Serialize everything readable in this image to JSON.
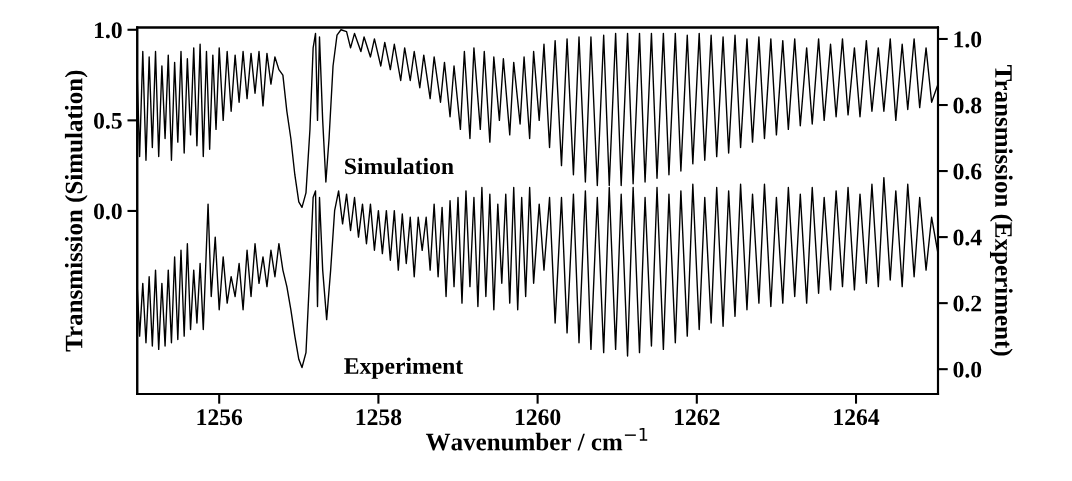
{
  "chart_data": {
    "type": "line",
    "xlabel": "Wavenumber / cm$^{−1}$",
    "ylabel": "Transmission (Simulation)",
    "y2label": "Transmission (Experiment)",
    "xlim": [
      1254.97,
      1265.03
    ],
    "xticks": [
      1256,
      1258,
      1260,
      1262,
      1264
    ],
    "ylim": [
      -1.01,
      1.013
    ],
    "yticks": [
      {
        "value": 0,
        "label": "0.0"
      },
      {
        "value": 0.5,
        "label": "0.5"
      },
      {
        "value": 1,
        "label": "1.0"
      }
    ],
    "y2lim": [
      -0.075,
      1.035
    ],
    "y2ticks": [
      {
        "value": 0,
        "label": "0.0"
      },
      {
        "value": 0.2,
        "label": "0.2"
      },
      {
        "value": 0.4,
        "label": "0.4"
      },
      {
        "value": 0.6,
        "label": "0.6"
      },
      {
        "value": 0.8,
        "label": "0.8"
      },
      {
        "value": 1,
        "label": "1.0"
      }
    ],
    "grid": false,
    "legend": false,
    "marker": "none",
    "line_style": "solid",
    "series": [
      {
        "name": "Simulation",
        "color": "#000000",
        "x": [
          1254.97,
          1255.0,
          1255.04,
          1255.08,
          1255.12,
          1255.16,
          1255.2,
          1255.24,
          1255.28,
          1255.32,
          1255.36,
          1255.4,
          1255.44,
          1255.48,
          1255.52,
          1255.56,
          1255.6,
          1255.64,
          1255.68,
          1255.72,
          1255.76,
          1255.8,
          1255.84,
          1255.88,
          1255.92,
          1255.96,
          1256.0,
          1256.05,
          1256.1,
          1256.15,
          1256.2,
          1256.25,
          1256.3,
          1256.35,
          1256.4,
          1256.45,
          1256.5,
          1256.55,
          1256.6,
          1256.65,
          1256.7,
          1256.75,
          1256.8,
          1256.85,
          1256.9,
          1256.95,
          1257.0,
          1257.04,
          1257.09,
          1257.14,
          1257.18,
          1257.21,
          1257.235,
          1257.26,
          1257.3,
          1257.34,
          1257.38,
          1257.43,
          1257.48,
          1257.53,
          1257.6,
          1257.65,
          1257.7,
          1257.78,
          1257.82,
          1257.9,
          1257.95,
          1258.03,
          1258.08,
          1258.15,
          1258.2,
          1258.28,
          1258.33,
          1258.4,
          1258.45,
          1258.52,
          1258.57,
          1258.65,
          1258.7,
          1258.78,
          1258.83,
          1258.9,
          1258.95,
          1259.03,
          1259.08,
          1259.15,
          1259.2,
          1259.28,
          1259.33,
          1259.4,
          1259.45,
          1259.52,
          1259.57,
          1259.65,
          1259.7,
          1259.78,
          1259.83,
          1259.9,
          1259.95,
          1260.02,
          1260.08,
          1260.15,
          1260.22,
          1260.3,
          1260.37,
          1260.45,
          1260.52,
          1260.6,
          1260.67,
          1260.75,
          1260.83,
          1260.9,
          1260.98,
          1261.05,
          1261.13,
          1261.2,
          1261.28,
          1261.35,
          1261.43,
          1261.5,
          1261.58,
          1261.65,
          1261.73,
          1261.8,
          1261.88,
          1261.95,
          1262.03,
          1262.1,
          1262.18,
          1262.25,
          1262.33,
          1262.4,
          1262.48,
          1262.55,
          1262.63,
          1262.7,
          1262.78,
          1262.85,
          1262.93,
          1263.0,
          1263.08,
          1263.15,
          1263.23,
          1263.3,
          1263.38,
          1263.45,
          1263.53,
          1263.6,
          1263.68,
          1263.75,
          1263.83,
          1263.9,
          1263.98,
          1264.05,
          1264.13,
          1264.2,
          1264.28,
          1264.35,
          1264.43,
          1264.5,
          1264.58,
          1264.65,
          1264.73,
          1264.8,
          1264.88,
          1264.95,
          1265.03
        ],
        "values": [
          0.75,
          0.3,
          0.88,
          0.28,
          0.85,
          0.35,
          0.88,
          0.3,
          0.8,
          0.4,
          0.86,
          0.28,
          0.82,
          0.38,
          0.88,
          0.32,
          0.84,
          0.42,
          0.9,
          0.36,
          0.92,
          0.3,
          0.88,
          0.34,
          0.86,
          0.45,
          0.9,
          0.5,
          0.88,
          0.55,
          0.86,
          0.6,
          0.88,
          0.62,
          0.87,
          0.65,
          0.88,
          0.58,
          0.87,
          0.7,
          0.85,
          0.78,
          0.75,
          0.55,
          0.4,
          0.2,
          0.05,
          0.02,
          0.1,
          0.45,
          0.9,
          0.98,
          0.5,
          0.96,
          0.5,
          0.16,
          0.4,
          0.8,
          0.97,
          1.0,
          0.99,
          0.9,
          0.98,
          0.88,
          0.96,
          0.85,
          0.95,
          0.8,
          0.93,
          0.78,
          0.92,
          0.72,
          0.9,
          0.72,
          0.88,
          0.68,
          0.86,
          0.62,
          0.85,
          0.6,
          0.82,
          0.52,
          0.8,
          0.45,
          0.88,
          0.4,
          0.9,
          0.45,
          0.88,
          0.38,
          0.85,
          0.5,
          0.84,
          0.42,
          0.82,
          0.48,
          0.85,
          0.4,
          0.88,
          0.5,
          0.92,
          0.35,
          0.94,
          0.25,
          0.95,
          0.2,
          0.96,
          0.16,
          0.96,
          0.14,
          0.97,
          0.14,
          0.98,
          0.14,
          0.98,
          0.15,
          0.98,
          0.16,
          0.98,
          0.18,
          0.98,
          0.2,
          0.98,
          0.22,
          0.97,
          0.26,
          0.98,
          0.28,
          0.97,
          0.3,
          0.96,
          0.32,
          0.97,
          0.35,
          0.95,
          0.38,
          0.96,
          0.4,
          0.95,
          0.42,
          0.94,
          0.45,
          0.95,
          0.47,
          0.9,
          0.48,
          0.95,
          0.5,
          0.92,
          0.52,
          0.95,
          0.53,
          0.9,
          0.52,
          0.94,
          0.55,
          0.9,
          0.55,
          0.95,
          0.5,
          0.92,
          0.56,
          0.95,
          0.57,
          0.9,
          0.6,
          0.7
        ]
      },
      {
        "name": "Experiment",
        "color": "#000000",
        "axis": "y2",
        "x": [
          1254.97,
          1255.0,
          1255.04,
          1255.08,
          1255.12,
          1255.16,
          1255.2,
          1255.24,
          1255.28,
          1255.32,
          1255.36,
          1255.4,
          1255.44,
          1255.48,
          1255.52,
          1255.56,
          1255.6,
          1255.64,
          1255.68,
          1255.72,
          1255.76,
          1255.8,
          1255.86,
          1255.9,
          1255.95,
          1256.0,
          1256.05,
          1256.1,
          1256.15,
          1256.2,
          1256.25,
          1256.3,
          1256.35,
          1256.4,
          1256.45,
          1256.5,
          1256.55,
          1256.6,
          1256.65,
          1256.7,
          1256.75,
          1256.8,
          1256.85,
          1256.9,
          1256.95,
          1257.0,
          1257.04,
          1257.09,
          1257.14,
          1257.18,
          1257.21,
          1257.235,
          1257.26,
          1257.3,
          1257.35,
          1257.4,
          1257.45,
          1257.5,
          1257.55,
          1257.6,
          1257.65,
          1257.7,
          1257.75,
          1257.8,
          1257.85,
          1257.9,
          1257.95,
          1258.0,
          1258.05,
          1258.1,
          1258.15,
          1258.2,
          1258.25,
          1258.3,
          1258.35,
          1258.4,
          1258.45,
          1258.5,
          1258.55,
          1258.6,
          1258.65,
          1258.7,
          1258.75,
          1258.8,
          1258.85,
          1258.9,
          1258.95,
          1259.0,
          1259.05,
          1259.1,
          1259.15,
          1259.2,
          1259.25,
          1259.3,
          1259.35,
          1259.4,
          1259.45,
          1259.5,
          1259.55,
          1259.6,
          1259.65,
          1259.7,
          1259.75,
          1259.8,
          1259.85,
          1259.9,
          1259.95,
          1260.02,
          1260.08,
          1260.15,
          1260.22,
          1260.3,
          1260.37,
          1260.45,
          1260.52,
          1260.6,
          1260.67,
          1260.75,
          1260.83,
          1260.9,
          1260.98,
          1261.05,
          1261.13,
          1261.2,
          1261.28,
          1261.35,
          1261.43,
          1261.5,
          1261.58,
          1261.65,
          1261.73,
          1261.8,
          1261.88,
          1261.95,
          1262.03,
          1262.1,
          1262.18,
          1262.25,
          1262.33,
          1262.4,
          1262.48,
          1262.55,
          1262.63,
          1262.7,
          1262.78,
          1262.85,
          1262.93,
          1263.0,
          1263.08,
          1263.15,
          1263.23,
          1263.3,
          1263.38,
          1263.45,
          1263.53,
          1263.6,
          1263.68,
          1263.75,
          1263.83,
          1263.9,
          1263.98,
          1264.05,
          1264.13,
          1264.2,
          1264.28,
          1264.35,
          1264.43,
          1264.5,
          1264.58,
          1264.65,
          1264.73,
          1264.8,
          1264.88,
          1264.95,
          1265.03
        ],
        "values": [
          0.25,
          0.1,
          0.26,
          0.08,
          0.28,
          0.07,
          0.3,
          0.06,
          0.26,
          0.07,
          0.3,
          0.08,
          0.34,
          0.09,
          0.36,
          0.1,
          0.38,
          0.12,
          0.3,
          0.14,
          0.32,
          0.12,
          0.5,
          0.22,
          0.4,
          0.18,
          0.34,
          0.2,
          0.28,
          0.22,
          0.32,
          0.18,
          0.36,
          0.22,
          0.38,
          0.26,
          0.34,
          0.25,
          0.36,
          0.28,
          0.38,
          0.3,
          0.25,
          0.18,
          0.1,
          0.03,
          0.005,
          0.05,
          0.3,
          0.52,
          0.54,
          0.19,
          0.52,
          0.3,
          0.15,
          0.3,
          0.48,
          0.54,
          0.44,
          0.53,
          0.42,
          0.52,
          0.4,
          0.5,
          0.38,
          0.5,
          0.36,
          0.48,
          0.35,
          0.48,
          0.33,
          0.48,
          0.3,
          0.47,
          0.32,
          0.46,
          0.28,
          0.46,
          0.36,
          0.46,
          0.3,
          0.5,
          0.28,
          0.49,
          0.22,
          0.51,
          0.25,
          0.52,
          0.2,
          0.54,
          0.25,
          0.52,
          0.19,
          0.55,
          0.22,
          0.53,
          0.18,
          0.5,
          0.26,
          0.53,
          0.2,
          0.55,
          0.18,
          0.52,
          0.22,
          0.55,
          0.26,
          0.5,
          0.3,
          0.52,
          0.14,
          0.52,
          0.11,
          0.53,
          0.08,
          0.54,
          0.06,
          0.52,
          0.05,
          0.55,
          0.06,
          0.53,
          0.04,
          0.55,
          0.05,
          0.52,
          0.07,
          0.55,
          0.06,
          0.53,
          0.08,
          0.54,
          0.1,
          0.56,
          0.12,
          0.52,
          0.14,
          0.55,
          0.13,
          0.54,
          0.16,
          0.56,
          0.18,
          0.53,
          0.2,
          0.56,
          0.19,
          0.52,
          0.2,
          0.55,
          0.22,
          0.53,
          0.2,
          0.55,
          0.23,
          0.52,
          0.24,
          0.54,
          0.25,
          0.55,
          0.24,
          0.53,
          0.26,
          0.56,
          0.25,
          0.58,
          0.27,
          0.54,
          0.25,
          0.56,
          0.28,
          0.52,
          0.3,
          0.46,
          0.35
        ]
      }
    ]
  }
}
